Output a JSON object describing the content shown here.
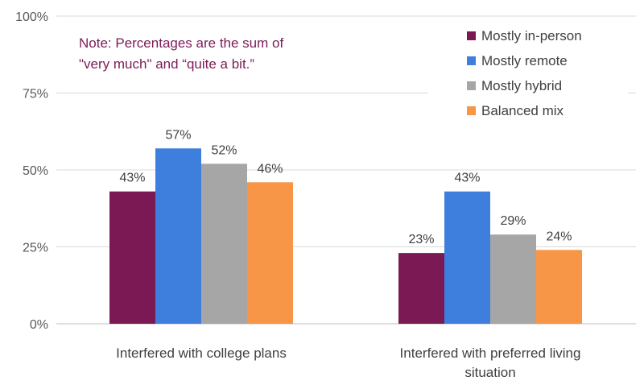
{
  "note": {
    "line1": "Note: Percentages are the sum of",
    "line2": "\"very much\" and “quite a bit.”",
    "color": "#7b1c57"
  },
  "chart_data": {
    "type": "bar",
    "title": "",
    "xlabel": "",
    "ylabel": "",
    "ylim": [
      0,
      100
    ],
    "yticks": [
      0,
      25,
      50,
      75,
      100
    ],
    "ytick_labels": [
      "0%",
      "25%",
      "50%",
      "75%",
      "100%"
    ],
    "grid": true,
    "legend_position": "top-right",
    "categories": [
      [
        "Interfered with college plans"
      ],
      [
        "Interfered with preferred living",
        "situation"
      ]
    ],
    "series": [
      {
        "name": "Mostly in-person",
        "color": "#7b1955",
        "values": [
          43,
          23
        ],
        "labels": [
          "43%",
          "23%"
        ]
      },
      {
        "name": "Mostly remote",
        "color": "#3e7fdd",
        "values": [
          57,
          43
        ],
        "labels": [
          "57%",
          "43%"
        ]
      },
      {
        "name": "Mostly hybrid",
        "color": "#a6a6a6",
        "values": [
          52,
          29
        ],
        "labels": [
          "52%",
          "29%"
        ]
      },
      {
        "name": "Balanced mix",
        "color": "#f79646",
        "values": [
          46,
          24
        ],
        "labels": [
          "46%",
          "24%"
        ]
      }
    ]
  }
}
